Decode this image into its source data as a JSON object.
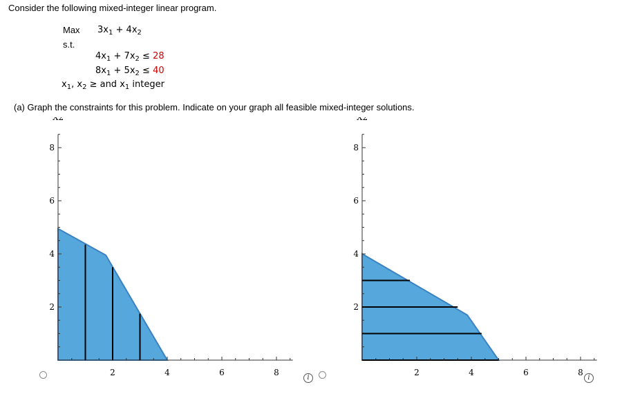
{
  "question": {
    "intro": "Consider the following mixed-integer linear program.",
    "max_label": "Max",
    "objective": {
      "c1": "3",
      "plus": "+",
      "c2": "4"
    },
    "st_label": "s.t.",
    "constraints": [
      {
        "a": "4",
        "b": "7",
        "sign": "≤",
        "rhs": "28"
      },
      {
        "a": "8",
        "b": "5",
        "sign": "≤",
        "rhs": "40"
      }
    ],
    "nonneg": {
      "sep": ",",
      "ge": "≥ and",
      "suffix": "integer"
    },
    "var_x": "x",
    "sub1": "1",
    "sub2": "2",
    "part_a": "(a)  Graph the constraints for this problem. Indicate on your graph all feasible mixed-integer solutions."
  },
  "colors": {
    "region_fill": "#55a7dc",
    "region_stroke": "#3a82c4",
    "rhs_red": "#cc0000"
  },
  "icons": {
    "info": "info-icon",
    "radio": "radio-button"
  },
  "info_glyph": "i",
  "charts": [
    {
      "type": "area",
      "xlabel": "X1",
      "ylabel": "X2",
      "xlim": [
        0,
        8.6
      ],
      "ylim": [
        0,
        8.5
      ],
      "xticks": [
        2,
        4,
        6,
        8
      ],
      "yticks": [
        2,
        4,
        6,
        8
      ],
      "polygon": [
        [
          0,
          0
        ],
        [
          0,
          4.95
        ],
        [
          1.75,
          3.95
        ],
        [
          4,
          0
        ]
      ],
      "segments": [
        [
          [
            1,
            0
          ],
          [
            1,
            4.35
          ]
        ],
        [
          [
            2,
            0
          ],
          [
            2,
            3.5
          ]
        ],
        [
          [
            3,
            0
          ],
          [
            3,
            1.75
          ]
        ]
      ]
    },
    {
      "type": "area",
      "xlabel": "X1",
      "ylabel": "X2",
      "xlim": [
        0,
        8.6
      ],
      "ylim": [
        0,
        8.5
      ],
      "xticks": [
        2,
        4,
        6,
        8
      ],
      "yticks": [
        2,
        4,
        6,
        8
      ],
      "polygon": [
        [
          0,
          0
        ],
        [
          0,
          4
        ],
        [
          3.85,
          1.7
        ],
        [
          5,
          0
        ]
      ],
      "segments": [
        [
          [
            0,
            3
          ],
          [
            1.75,
            3
          ]
        ],
        [
          [
            0,
            2
          ],
          [
            3.5,
            2
          ]
        ],
        [
          [
            0,
            1
          ],
          [
            4.375,
            1
          ]
        ],
        [
          [
            0,
            0
          ],
          [
            5,
            0
          ]
        ]
      ]
    }
  ]
}
